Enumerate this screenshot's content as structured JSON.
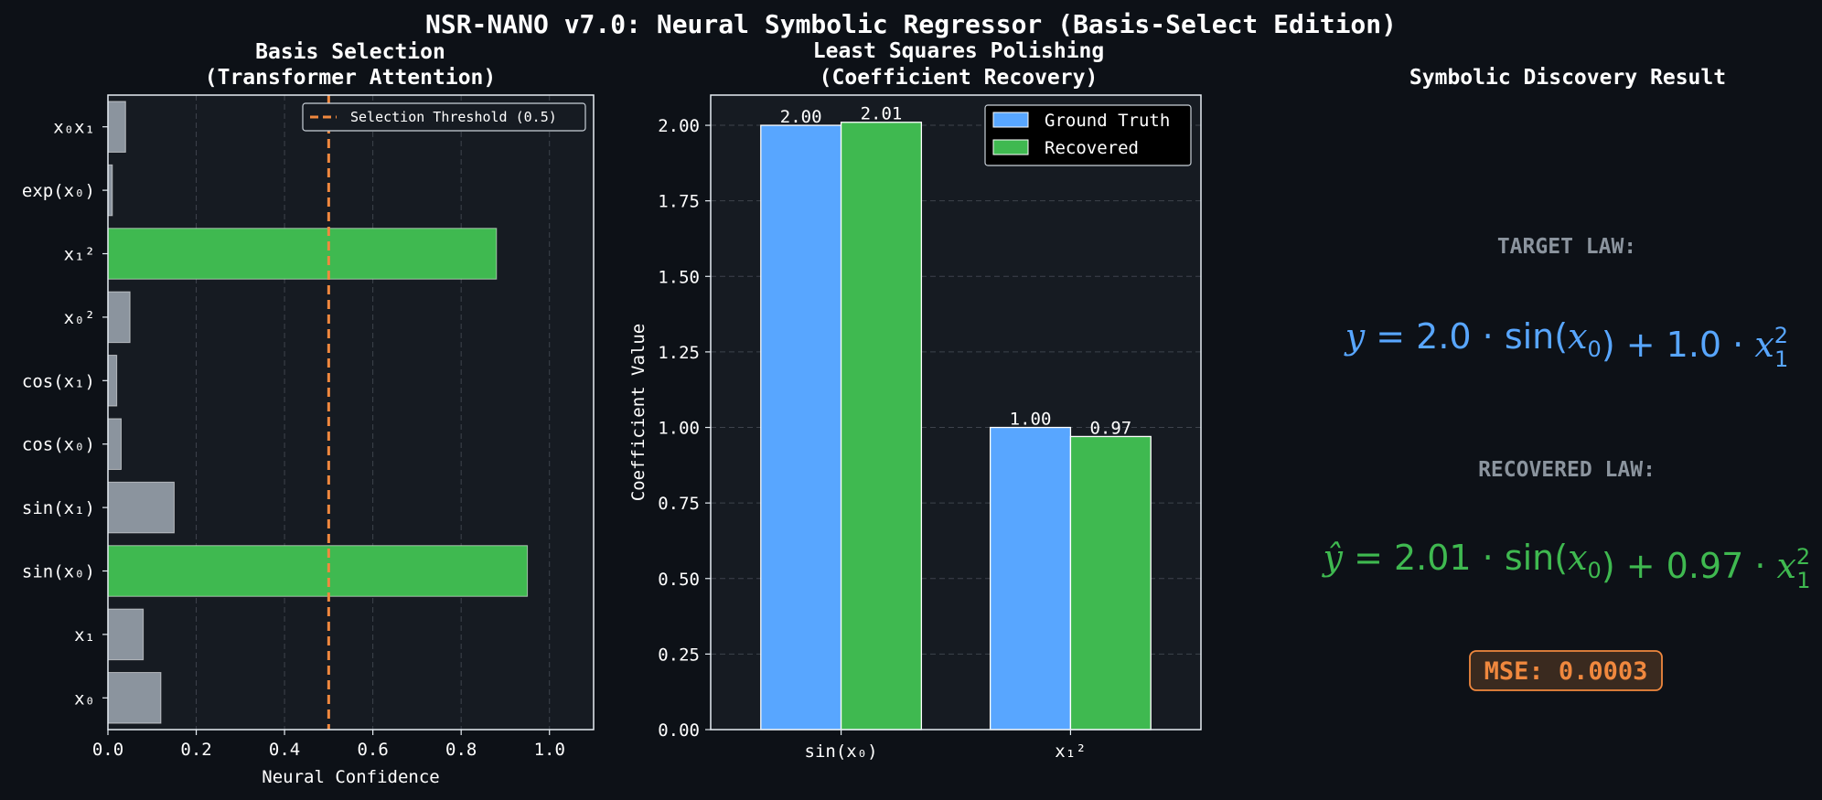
{
  "suptitle": "NSR-NANO v7.0: Neural Symbolic Regressor (Basis-Select Edition)",
  "colors": {
    "background": "#0d1117",
    "axes_face": "#161b22",
    "selected": "#3fb950",
    "unselected": "#8b949e",
    "threshold": "#f0883e",
    "ground_truth": "#58a6ff",
    "recovered": "#3fb950",
    "target_text": "#58a6ff",
    "recovered_text": "#3fb950",
    "mse": "#f0883e"
  },
  "chart_data": [
    {
      "type": "bar",
      "orientation": "horizontal",
      "title_line1": "Basis Selection",
      "title_line2": "(Transformer Attention)",
      "xlabel": "Neural Confidence",
      "ylabel": "",
      "xlim": [
        0,
        1.1
      ],
      "xticks": [
        0.0,
        0.2,
        0.4,
        0.6,
        0.8,
        1.0
      ],
      "xtick_labels": [
        "0.0",
        "0.2",
        "0.4",
        "0.6",
        "0.8",
        "1.0"
      ],
      "grid": "vertical dashed",
      "threshold": 0.5,
      "threshold_label": "Selection Threshold (0.5)",
      "legend_position": "top-right",
      "categories": [
        "x₀",
        "x₁",
        "sin(x₀)",
        "sin(x₁)",
        "cos(x₀)",
        "cos(x₁)",
        "x₀²",
        "x₁²",
        "exp(x₀)",
        "x₀x₁"
      ],
      "values": [
        0.12,
        0.08,
        0.95,
        0.15,
        0.03,
        0.02,
        0.05,
        0.88,
        0.01,
        0.04
      ],
      "selected": [
        false,
        false,
        true,
        false,
        false,
        false,
        false,
        true,
        false,
        false
      ]
    },
    {
      "type": "bar",
      "title_line1": "Least Squares Polishing",
      "title_line2": "(Coefficient Recovery)",
      "xlabel": "",
      "ylabel": "Coefficient Value",
      "ylim": [
        0,
        2.1
      ],
      "yticks": [
        0.0,
        0.25,
        0.5,
        0.75,
        1.0,
        1.25,
        1.5,
        1.75,
        2.0
      ],
      "ytick_labels": [
        "0.00",
        "0.25",
        "0.50",
        "0.75",
        "1.00",
        "1.25",
        "1.50",
        "1.75",
        "2.00"
      ],
      "grid": "horizontal dashed",
      "legend_position": "top-right",
      "categories": [
        "sin(x₀)",
        "x₁²"
      ],
      "series": [
        {
          "name": "Ground Truth",
          "values": [
            2.0,
            1.0
          ],
          "labels": [
            "2.00",
            "1.00"
          ]
        },
        {
          "name": "Recovered",
          "values": [
            2.01,
            0.97
          ],
          "labels": [
            "2.01",
            "0.97"
          ]
        }
      ]
    }
  ],
  "result_panel": {
    "title": "Symbolic Discovery Result",
    "target_heading": "TARGET LAW:",
    "target_equation": "y = 2.0 · sin(x₀) + 1.0 · x₁²",
    "recovered_heading": "RECOVERED LAW:",
    "recovered_equation": "ŷ = 2.01 · sin(x₀) + 0.97 · x₁²",
    "mse_label": "MSE: 0.0003"
  }
}
